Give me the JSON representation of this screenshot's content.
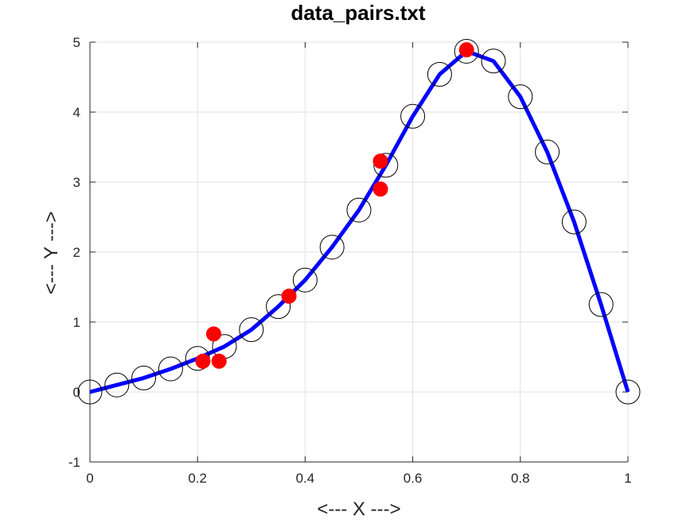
{
  "chart_data": {
    "type": "line",
    "title": "data_pairs.txt",
    "xlabel": "<--- X --->",
    "ylabel": "<--- Y --->",
    "xlim": [
      0,
      1
    ],
    "ylim": [
      -1,
      5
    ],
    "xticks": [
      0,
      0.2,
      0.4,
      0.6,
      0.8,
      1
    ],
    "xtick_labels": [
      "0",
      "0.2",
      "0.4",
      "0.6",
      "0.8",
      "1"
    ],
    "yticks": [
      -1,
      0,
      1,
      2,
      3,
      4,
      5
    ],
    "ytick_labels": [
      "-1",
      "0",
      "1",
      "2",
      "3",
      "4",
      "5"
    ],
    "grid": true,
    "line_series": {
      "color": "#0000ff",
      "x": [
        0,
        0.05,
        0.1,
        0.15,
        0.2,
        0.25,
        0.3,
        0.35,
        0.4,
        0.45,
        0.5,
        0.55,
        0.6,
        0.65,
        0.7,
        0.75,
        0.8,
        0.85,
        0.9,
        0.95,
        1.0
      ],
      "y": [
        0,
        0.1,
        0.2,
        0.33,
        0.48,
        0.65,
        0.89,
        1.22,
        1.6,
        2.07,
        2.6,
        3.24,
        3.94,
        4.54,
        4.87,
        4.73,
        4.22,
        3.43,
        2.43,
        1.25,
        0
      ]
    },
    "open_markers": {
      "color": "#000000",
      "x": [
        0,
        0.05,
        0.1,
        0.15,
        0.2,
        0.25,
        0.3,
        0.35,
        0.4,
        0.45,
        0.5,
        0.55,
        0.6,
        0.65,
        0.7,
        0.75,
        0.8,
        0.85,
        0.9,
        0.95,
        1.0
      ],
      "y": [
        0,
        0.1,
        0.2,
        0.33,
        0.48,
        0.65,
        0.89,
        1.22,
        1.6,
        2.07,
        2.6,
        3.24,
        3.94,
        4.54,
        4.87,
        4.73,
        4.22,
        3.43,
        2.43,
        1.25,
        0
      ]
    },
    "filled_markers": {
      "color": "#ff0000",
      "x": [
        0.21,
        0.23,
        0.24,
        0.37,
        0.54,
        0.54,
        0.7
      ],
      "y": [
        0.44,
        0.83,
        0.44,
        1.37,
        3.3,
        2.9,
        4.89
      ]
    }
  }
}
